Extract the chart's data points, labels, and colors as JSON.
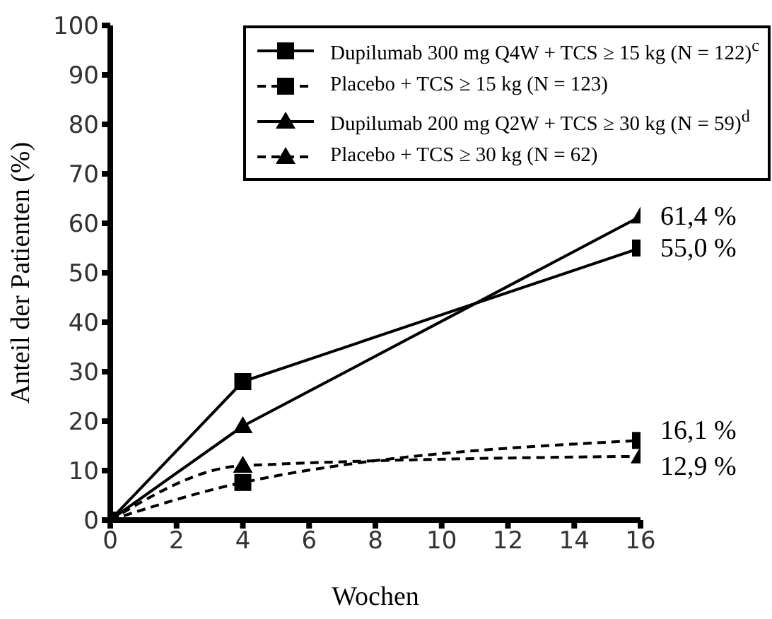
{
  "chart_data": {
    "type": "line",
    "xlabel": "Wochen",
    "ylabel": "Anteil der Patienten (%)",
    "x": [
      0,
      4,
      16
    ],
    "series": [
      {
        "name": "Dupilumab 300 mg Q4W + TCS ≥ 15 kg (N = 122)$^{c}$",
        "color": "#000000",
        "marker": "square",
        "line_style": "solid",
        "values": [
          0,
          28,
          55.0
        ],
        "value_labels": [
          null,
          null,
          "55,0 %"
        ]
      },
      {
        "name": "Placebo + TCS ≥ 15 kg (N = 123)",
        "color": "#000000",
        "marker": "square",
        "line_style": "dashed",
        "values": [
          0,
          7.6,
          16.1
        ],
        "value_labels": [
          null,
          null,
          "16,1 %"
        ]
      },
      {
        "name": "Dupilumab 200 mg Q2W + TCS ≥ 30 kg (N = 59)$^{d}$",
        "color": "#000000",
        "marker": "triangle",
        "line_style": "solid",
        "values": [
          0,
          19,
          61.4
        ],
        "value_labels": [
          null,
          null,
          "61,4 %"
        ]
      },
      {
        "name": "Placebo + TCS ≥ 30 kg (N = 62)",
        "color": "#000000",
        "marker": "triangle",
        "line_style": "dashed",
        "values": [
          0,
          11,
          12.9
        ],
        "value_labels": [
          null,
          null,
          "12,9 %"
        ]
      }
    ],
    "xlim": [
      0,
      16
    ],
    "xticks": [
      0,
      2,
      4,
      6,
      8,
      10,
      12,
      14,
      16
    ],
    "ylim": [
      0,
      100
    ],
    "yticks": [
      0,
      10,
      20,
      30,
      40,
      50,
      60,
      70,
      80,
      90,
      100
    ],
    "grid": false,
    "legend": "top right"
  }
}
